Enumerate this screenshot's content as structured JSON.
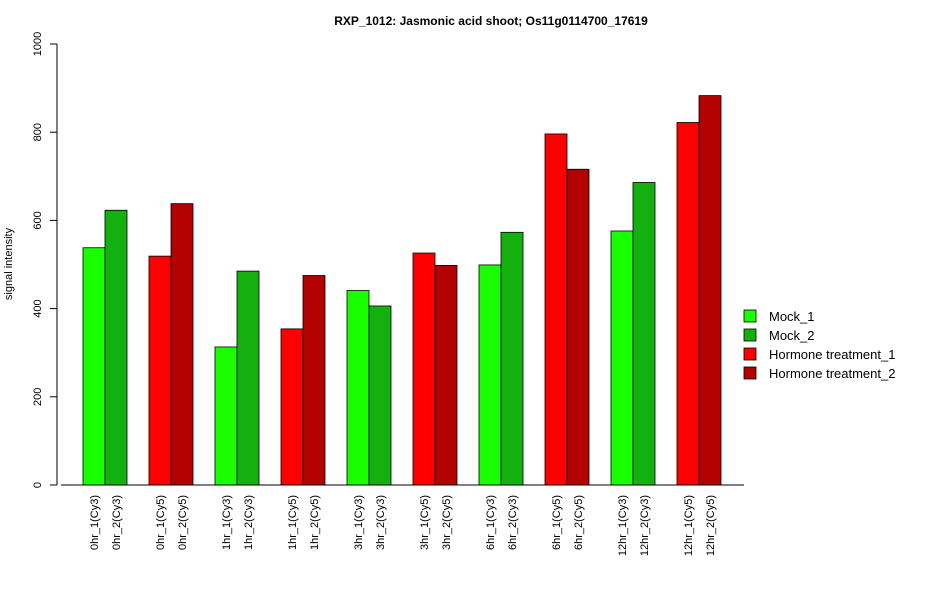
{
  "chart_data": {
    "type": "bar",
    "title": "RXP_1012: Jasmonic acid shoot; Os11g0114700_17619",
    "xlabel": "",
    "ylabel": "signal intensity",
    "ylim": [
      0,
      1000
    ],
    "yticks": [
      0,
      200,
      400,
      600,
      800,
      1000
    ],
    "grid": false,
    "legend_position": "right",
    "bars": [
      {
        "label": "0hr_1(Cy3)",
        "value": 538,
        "series": "Mock_1"
      },
      {
        "label": "0hr_2(Cy3)",
        "value": 623,
        "series": "Mock_2"
      },
      {
        "label": "0hr_1(Cy5)",
        "value": 519,
        "series": "Hormone treatment_1"
      },
      {
        "label": "0hr_2(Cy5)",
        "value": 638,
        "series": "Hormone treatment_2"
      },
      {
        "label": "1hr_1(Cy3)",
        "value": 313,
        "series": "Mock_1"
      },
      {
        "label": "1hr_2(Cy3)",
        "value": 485,
        "series": "Mock_2"
      },
      {
        "label": "1hr_1(Cy5)",
        "value": 354,
        "series": "Hormone treatment_1"
      },
      {
        "label": "1hr_2(Cy5)",
        "value": 475,
        "series": "Hormone treatment_2"
      },
      {
        "label": "3hr_1(Cy3)",
        "value": 441,
        "series": "Mock_1"
      },
      {
        "label": "3hr_2(Cy3)",
        "value": 406,
        "series": "Mock_2"
      },
      {
        "label": "3hr_1(Cy5)",
        "value": 526,
        "series": "Hormone treatment_1"
      },
      {
        "label": "3hr_2(Cy5)",
        "value": 498,
        "series": "Hormone treatment_2"
      },
      {
        "label": "6hr_1(Cy3)",
        "value": 499,
        "series": "Mock_1"
      },
      {
        "label": "6hr_2(Cy3)",
        "value": 573,
        "series": "Mock_2"
      },
      {
        "label": "6hr_1(Cy5)",
        "value": 796,
        "series": "Hormone treatment_1"
      },
      {
        "label": "6hr_2(Cy5)",
        "value": 716,
        "series": "Hormone treatment_2"
      },
      {
        "label": "12hr_1(Cy3)",
        "value": 576,
        "series": "Mock_1"
      },
      {
        "label": "12hr_2(Cy3)",
        "value": 686,
        "series": "Mock_2"
      },
      {
        "label": "12hr_1(Cy5)",
        "value": 822,
        "series": "Hormone treatment_1"
      },
      {
        "label": "12hr_2(Cy5)",
        "value": 883,
        "series": "Hormone treatment_2"
      }
    ],
    "legend": [
      {
        "name": "Mock_1",
        "color": "#19ff00"
      },
      {
        "name": "Mock_2",
        "color": "#13b00f"
      },
      {
        "name": "Hormone treatment_1",
        "color": "#ff0000"
      },
      {
        "name": "Hormone treatment_2",
        "color": "#b30000"
      }
    ]
  }
}
